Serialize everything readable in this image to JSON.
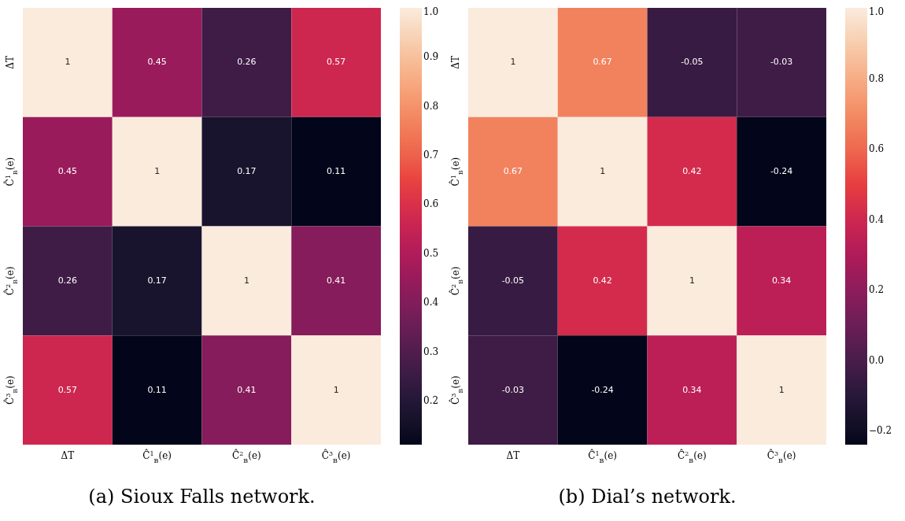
{
  "chart_data": [
    {
      "type": "heatmap",
      "title": "(a) Sioux Falls network.",
      "categories": [
        "ΔT",
        "Ĉ$^{1}$$_{B}$(e)",
        "Ĉ$^{2}$$_{B}$(e)",
        "Ĉ$^{3}$$_{B}$(e)"
      ],
      "y_categories": [
        "ΔT",
        "Ĉ$^{1}$$_{B}$(e)",
        "Ĉ$^{2}$$_{B}$(e)",
        "Ĉ$^{3}$$_{B}$(e)"
      ],
      "cells": [
        [
          1,
          0.45,
          0.26,
          0.57
        ],
        [
          0.45,
          1,
          0.17,
          0.11
        ],
        [
          0.26,
          0.17,
          1,
          0.41
        ],
        [
          0.57,
          0.11,
          0.41,
          1
        ]
      ],
      "data_labels": true,
      "clim": [
        0.11,
        1
      ],
      "cticks": [
        {
          "value": 0.2,
          "label": "0.2"
        },
        {
          "value": 0.3,
          "label": "0.3"
        },
        {
          "value": 0.4,
          "label": "0.4"
        },
        {
          "value": 0.5,
          "label": "0.5"
        },
        {
          "value": 0.6,
          "label": "0.6"
        },
        {
          "value": 0.7,
          "label": "0.7"
        },
        {
          "value": 0.8,
          "label": "0.8"
        },
        {
          "value": 0.9,
          "label": "0.9"
        },
        {
          "value": 1,
          "label": "1.0"
        }
      ]
    },
    {
      "type": "heatmap",
      "title": "(b) Dial’s network.",
      "categories": [
        "ΔT",
        "Ĉ$^{1}$$_{B}$(e)",
        "Ĉ$^{2}$$_{B}$(e)",
        "Ĉ$^{3}$$_{B}$(e)"
      ],
      "y_categories": [
        "ΔT",
        "Ĉ$^{1}$$_{B}$(e)",
        "Ĉ$^{2}$$_{B}$(e)",
        "Ĉ$^{3}$$_{B}$(e)"
      ],
      "cells": [
        [
          1,
          0.67,
          -0.05,
          -0.03
        ],
        [
          0.67,
          1,
          0.42,
          -0.24
        ],
        [
          -0.05,
          0.42,
          1,
          0.34
        ],
        [
          -0.03,
          -0.24,
          0.34,
          1
        ]
      ],
      "data_labels": true,
      "clim": [
        -0.24,
        1
      ],
      "cticks": [
        {
          "value": -0.2,
          "label": "−0.2"
        },
        {
          "value": 0,
          "label": "0.0"
        },
        {
          "value": 0.2,
          "label": "0.2"
        },
        {
          "value": 0.4,
          "label": "0.4"
        },
        {
          "value": 0.6,
          "label": "0.6"
        },
        {
          "value": 0.8,
          "label": "0.8"
        },
        {
          "value": 1,
          "label": "1.0"
        }
      ]
    }
  ]
}
